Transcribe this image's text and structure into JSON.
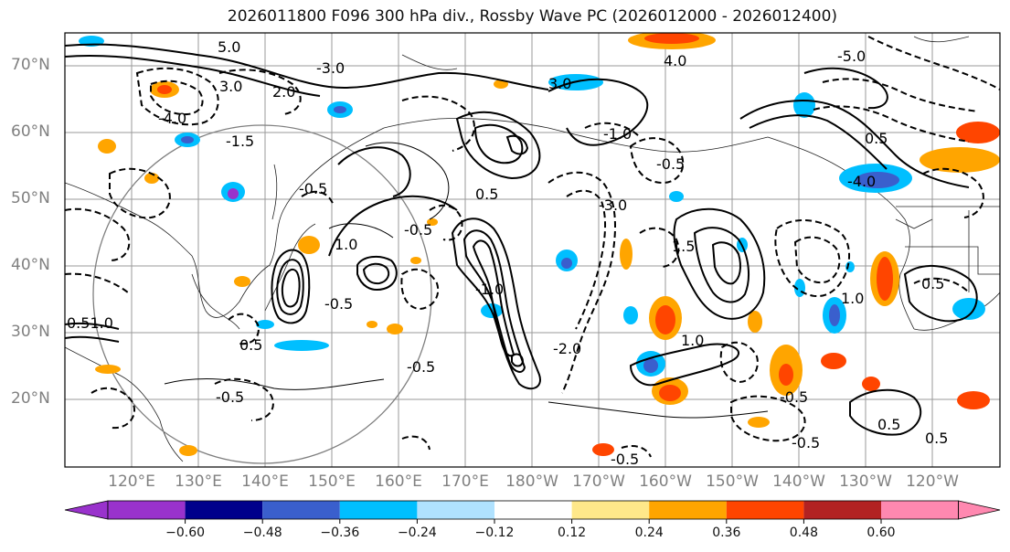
{
  "title": "2026011800 F096 300 hPa div., Rossby Wave PC (2026012000 - 2026012400)",
  "latitude_labels": [
    "70°N",
    "60°N",
    "50°N",
    "40°N",
    "30°N",
    "20°N"
  ],
  "longitude_labels": [
    "120°E",
    "130°E",
    "140°E",
    "150°E",
    "160°E",
    "170°E",
    "180°W",
    "170°W",
    "160°W",
    "150°W",
    "140°W",
    "130°W",
    "120°W"
  ],
  "contour_labels": [
    "5.0",
    "3.0",
    "4.0",
    "2.0",
    "1.5",
    "1.0",
    "0.5",
    "-0.5",
    "-1.0",
    "-1.5",
    "-2.0",
    "-3.0",
    "-4.0",
    "-5.0"
  ],
  "colorbar": {
    "ticks": [
      "−0.60",
      "−0.48",
      "−0.36",
      "−0.24",
      "−0.12",
      "0.12",
      "0.24",
      "0.36",
      "0.48",
      "0.60"
    ],
    "colors": [
      "#9932cc",
      "#00008b",
      "#3a5fcd",
      "#00bfff",
      "#b0e2ff",
      "#ffffff",
      "#ffe88a",
      "#ffa500",
      "#ff4500",
      "#b22222",
      "#ff88b0"
    ]
  }
}
